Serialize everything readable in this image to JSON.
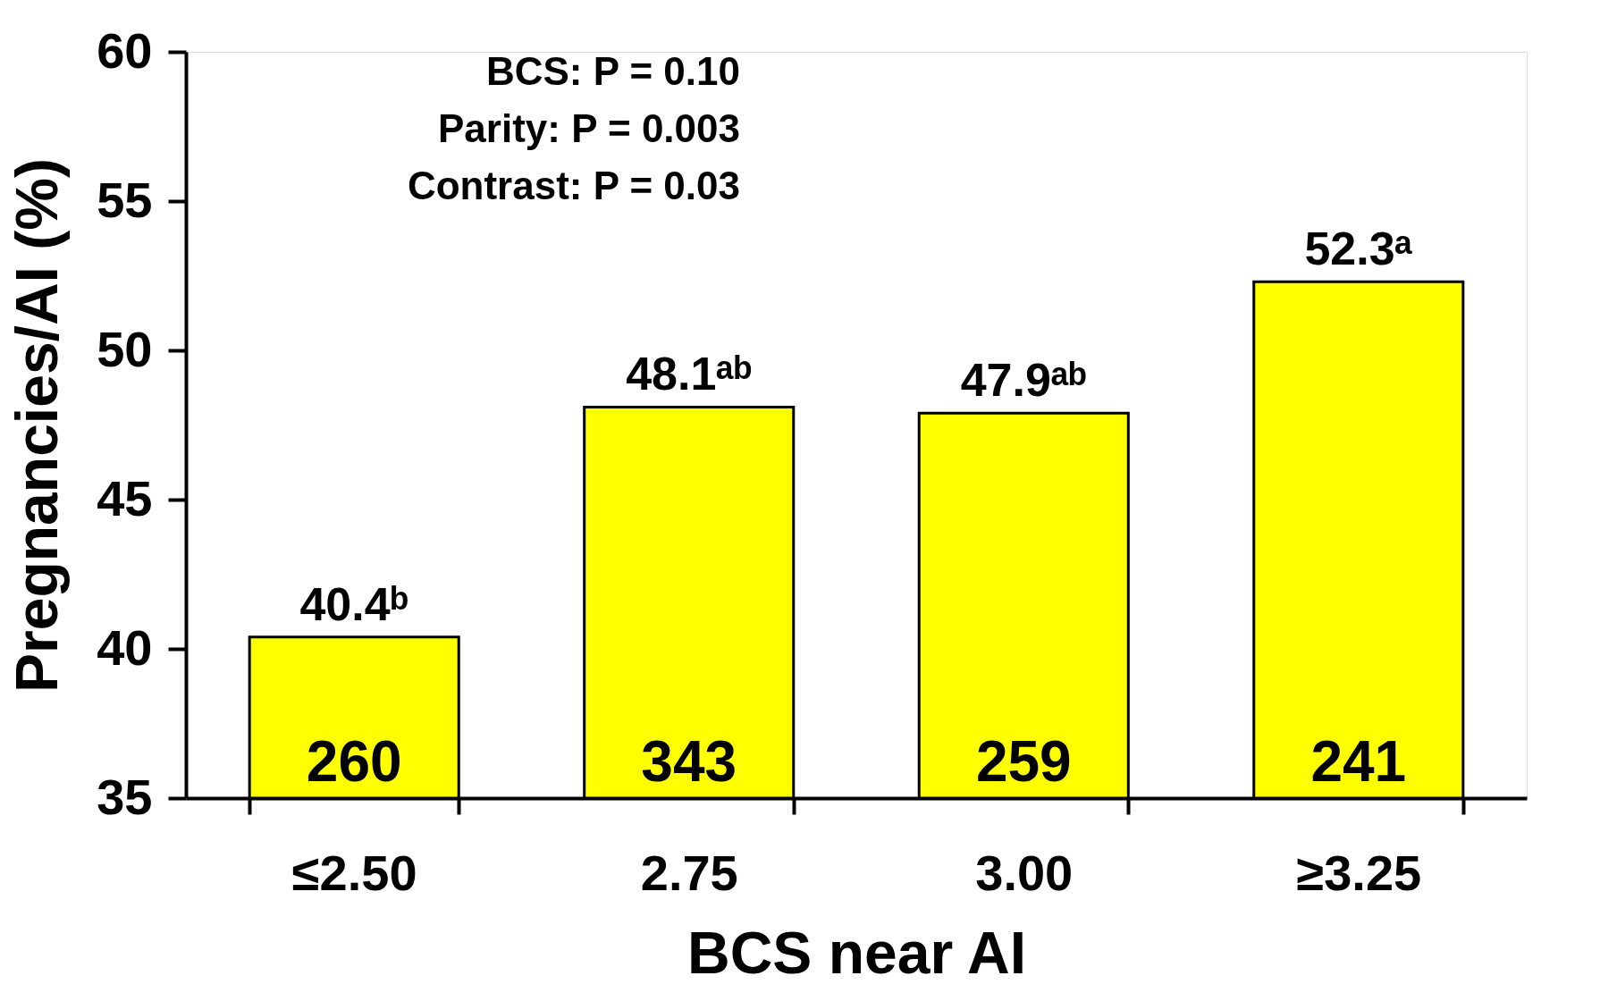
{
  "chart_data": {
    "type": "bar",
    "xlabel": "BCS near AI",
    "ylabel": "Pregnancies/AI  (%)",
    "categories": [
      "≤2.50",
      "2.75",
      "3.00",
      "≥3.25"
    ],
    "values": [
      40.4,
      48.1,
      47.9,
      52.3
    ],
    "value_labels": [
      "40.4ᵇ",
      "48.1ᵃᵇ",
      "47.9ᵃᵇ",
      "52.3ᵃ"
    ],
    "color": "#ffff00",
    "ylim": [
      35,
      60
    ],
    "yticks": [
      35,
      40,
      45,
      50,
      55,
      60
    ],
    "grid": false,
    "annotations": [
      "BCS: P = 0.10",
      "Parity: P = 0.003",
      "Contrast: P = 0.03",
      "260",
      "343",
      "259",
      "241"
    ]
  }
}
